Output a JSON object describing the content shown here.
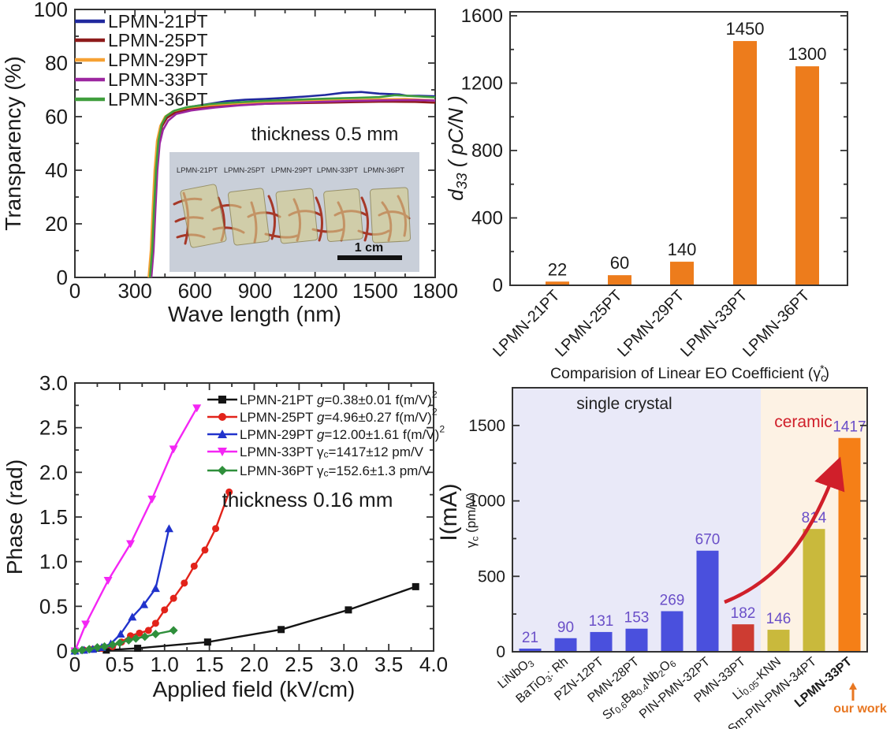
{
  "figure": {
    "background": "#ffffff",
    "frame_color": "#333333"
  },
  "chart_data": [
    {
      "id": "transparency",
      "panel": "top-left",
      "type": "line",
      "title": "",
      "xlabel": "Wave length (nm)",
      "ylabel": "Transparency (%)",
      "xlim": [
        0,
        1800
      ],
      "ylim": [
        0,
        100
      ],
      "xticks": [
        0,
        300,
        600,
        900,
        1200,
        1500,
        1800
      ],
      "yticks": [
        0,
        20,
        40,
        60,
        80,
        100
      ],
      "x_minor_step": 150,
      "y_minor_step": 10,
      "grid": false,
      "legend_position": "top-left",
      "annotation": "thickness ~0.5 mm",
      "series": [
        {
          "name": "LPMN-21PT",
          "legend_label": "LPMN-21PT",
          "color": "#20299e",
          "points": [
            [
              372,
              0
            ],
            [
              383,
              10
            ],
            [
              392,
              25
            ],
            [
              402,
              40
            ],
            [
              414,
              51
            ],
            [
              430,
              57
            ],
            [
              452,
              60
            ],
            [
              490,
              62
            ],
            [
              560,
              63.5
            ],
            [
              650,
              64.5
            ],
            [
              760,
              65.8
            ],
            [
              850,
              66.3
            ],
            [
              950,
              66.6
            ],
            [
              1050,
              67
            ],
            [
              1150,
              67.5
            ],
            [
              1250,
              68.1
            ],
            [
              1340,
              68.9
            ],
            [
              1430,
              69.2
            ],
            [
              1520,
              68.6
            ],
            [
              1620,
              68.3
            ],
            [
              1660,
              67.8
            ],
            [
              1720,
              67.8
            ],
            [
              1800,
              67.6
            ]
          ]
        },
        {
          "name": "LPMN-25PT",
          "legend_label": "LPMN-25PT",
          "color": "#8e1b1b",
          "points": [
            [
              378,
              0
            ],
            [
              389,
              10
            ],
            [
              398,
              25
            ],
            [
              408,
              40
            ],
            [
              420,
              51
            ],
            [
              436,
              56.5
            ],
            [
              460,
              59.5
            ],
            [
              500,
              61.5
            ],
            [
              570,
              62.8
            ],
            [
              680,
              63.8
            ],
            [
              800,
              64.3
            ],
            [
              950,
              64.8
            ],
            [
              1100,
              65
            ],
            [
              1250,
              65.2
            ],
            [
              1400,
              65.4
            ],
            [
              1550,
              65.6
            ],
            [
              1700,
              65.5
            ],
            [
              1800,
              65.2
            ]
          ]
        },
        {
          "name": "LPMN-29PT",
          "legend_label": "LPMN-29PT",
          "color": "#f6a133",
          "points": [
            [
              368,
              0
            ],
            [
              379,
              10
            ],
            [
              388,
              25
            ],
            [
              398,
              40
            ],
            [
              410,
              51
            ],
            [
              426,
              56.5
            ],
            [
              450,
              60
            ],
            [
              490,
              62
            ],
            [
              560,
              63.3
            ],
            [
              680,
              64.3
            ],
            [
              800,
              64.9
            ],
            [
              950,
              65.4
            ],
            [
              1100,
              65.7
            ],
            [
              1250,
              66
            ],
            [
              1400,
              66.2
            ],
            [
              1530,
              66.5
            ],
            [
              1650,
              66.6
            ],
            [
              1800,
              66.1
            ]
          ]
        },
        {
          "name": "LPMN-33PT",
          "legend_label": "LPMN-33PT",
          "color": "#9c26a0",
          "points": [
            [
              382,
              0
            ],
            [
              393,
              10
            ],
            [
              402,
              25
            ],
            [
              412,
              40
            ],
            [
              424,
              50
            ],
            [
              440,
              55
            ],
            [
              466,
              58.5
            ],
            [
              506,
              61
            ],
            [
              580,
              62.3
            ],
            [
              700,
              63.4
            ],
            [
              820,
              64.2
            ],
            [
              950,
              64.8
            ],
            [
              1100,
              65.2
            ],
            [
              1250,
              65.6
            ],
            [
              1400,
              65.9
            ],
            [
              1550,
              66.1
            ],
            [
              1700,
              66.2
            ],
            [
              1800,
              66
            ]
          ]
        },
        {
          "name": "LPMN-36PT",
          "legend_label": "LPMN-36PT",
          "color": "#3f9e3c",
          "points": [
            [
              375,
              0
            ],
            [
              386,
              10
            ],
            [
              395,
              25
            ],
            [
              405,
              40
            ],
            [
              417,
              51
            ],
            [
              433,
              57
            ],
            [
              456,
              60.2
            ],
            [
              496,
              62.2
            ],
            [
              565,
              63.6
            ],
            [
              680,
              64.7
            ],
            [
              800,
              65.3
            ],
            [
              950,
              65.9
            ],
            [
              1100,
              66.3
            ],
            [
              1250,
              66.7
            ],
            [
              1400,
              67
            ],
            [
              1520,
              67.3
            ],
            [
              1600,
              68
            ],
            [
              1680,
              67.7
            ],
            [
              1800,
              67.2
            ]
          ]
        }
      ],
      "inset": {
        "sample_labels": [
          "LPMN-21PT",
          "LPMN-25PT",
          "LPMN-29PT",
          "LPMN-33PT",
          "LPMN-36PT"
        ],
        "scale_label": "1 cm",
        "background": "#c9cfd9",
        "sample_color": "rgba(213,203,138,0.62)",
        "ink_color": "#a5301f"
      }
    },
    {
      "id": "d33",
      "panel": "top-right",
      "type": "bar",
      "title": "",
      "ylabel": "d~33~ ( pC/N )",
      "categories": [
        "LPMN-21PT",
        "LPMN-25PT",
        "LPMN-29PT",
        "LPMN-33PT",
        "LPMN-36PT"
      ],
      "values": [
        22,
        60,
        140,
        1450,
        1300
      ],
      "bar_color": "#ed7c1c",
      "value_label_color": "#1b1b1b",
      "ylim": [
        0,
        1600
      ],
      "yticks": [
        0,
        400,
        800,
        1200,
        1600
      ],
      "y_minor_step": 200,
      "grid": false
    },
    {
      "id": "phase",
      "panel": "bottom-left",
      "type": "line",
      "title": "",
      "xlabel": "Applied field (kV/cm)",
      "ylabel": "Phase (rad)",
      "xlim": [
        0,
        4
      ],
      "ylim": [
        0,
        3
      ],
      "xticks": [
        0,
        0.5,
        1,
        1.5,
        2,
        2.5,
        3,
        3.5,
        4
      ],
      "xtick_labels": [
        "0",
        "0.5",
        "1.0",
        "1.5",
        "2.0",
        "2.5",
        "3.0",
        "3.5",
        "4.0"
      ],
      "yticks": [
        0,
        0.5,
        1,
        1.5,
        2,
        2.5,
        3
      ],
      "ytick_labels": [
        "0",
        "0.5",
        "1.0",
        "1.5",
        "2.0",
        "2.5",
        "3.0"
      ],
      "x_minor_step": 0.25,
      "y_minor_step": 0.25,
      "grid": false,
      "legend_position": "top-right",
      "annotation": "thickness 0.16 mm",
      "series": [
        {
          "name": "LPMN-21PT",
          "legend_label": "LPMN-21PT *g*=0.38±0.01 f(m/V)^2^",
          "color": "#141414",
          "marker": "square",
          "points": [
            [
              0,
              0
            ],
            [
              0.35,
              0.01
            ],
            [
              0.7,
              0.03
            ],
            [
              1.48,
              0.1
            ],
            [
              2.3,
              0.24
            ],
            [
              3.05,
              0.46
            ],
            [
              3.8,
              0.72
            ]
          ]
        },
        {
          "name": "LPMN-25PT",
          "legend_label": "LPMN-25PT *g*=4.96±0.27 f(m/V)^2^",
          "color": "#e2231a",
          "marker": "circle",
          "points": [
            [
              0,
              0
            ],
            [
              0.1,
              0.01
            ],
            [
              0.2,
              0.02
            ],
            [
              0.3,
              0.03
            ],
            [
              0.42,
              0.05
            ],
            [
              0.52,
              0.1
            ],
            [
              0.62,
              0.17
            ],
            [
              0.72,
              0.2
            ],
            [
              0.82,
              0.23
            ],
            [
              0.9,
              0.31
            ],
            [
              1.0,
              0.46
            ],
            [
              1.1,
              0.59
            ],
            [
              1.22,
              0.76
            ],
            [
              1.33,
              0.95
            ],
            [
              1.45,
              1.13
            ],
            [
              1.57,
              1.37
            ],
            [
              1.72,
              1.78
            ]
          ]
        },
        {
          "name": "LPMN-29PT",
          "legend_label": "LPMN-29PT *g*=12.00±1.61 f(m/V)^2^",
          "color": "#2133cc",
          "marker": "triangle-up",
          "points": [
            [
              0,
              0
            ],
            [
              0.1,
              0.01
            ],
            [
              0.2,
              0.02
            ],
            [
              0.3,
              0.04
            ],
            [
              0.4,
              0.08
            ],
            [
              0.51,
              0.19
            ],
            [
              0.64,
              0.38
            ],
            [
              0.77,
              0.52
            ],
            [
              0.9,
              0.7
            ],
            [
              1.05,
              1.37
            ]
          ]
        },
        {
          "name": "LPMN-33PT",
          "legend_label": "LPMN-33PT γ~c~=1417±12 pm/V",
          "color": "#f426f4",
          "marker": "triangle-down",
          "points": [
            [
              0,
              0
            ],
            [
              0.12,
              0.3
            ],
            [
              0.37,
              0.79
            ],
            [
              0.62,
              1.2
            ],
            [
              0.86,
              1.7
            ],
            [
              1.1,
              2.26
            ],
            [
              1.36,
              2.72
            ]
          ]
        },
        {
          "name": "LPMN-36PT",
          "legend_label": "LPMN-36PT γ~c~=152.6±1.3 pm/V",
          "color": "#2f8f3b",
          "marker": "diamond",
          "points": [
            [
              0,
              0
            ],
            [
              0.08,
              0.01
            ],
            [
              0.16,
              0.02
            ],
            [
              0.25,
              0.04
            ],
            [
              0.33,
              0.05
            ],
            [
              0.42,
              0.07
            ],
            [
              0.5,
              0.09
            ],
            [
              0.6,
              0.12
            ],
            [
              0.68,
              0.14
            ],
            [
              0.78,
              0.16
            ],
            [
              0.9,
              0.19
            ],
            [
              1.1,
              0.23
            ]
          ]
        }
      ]
    },
    {
      "id": "eo-comparison",
      "panel": "bottom-right",
      "type": "bar",
      "title": "Comparision of Linear EO Coefficient (γ~c~^*^)",
      "ylabel": "γ~c~ (pm/V)",
      "stray_axis_label": "I(mA)",
      "categories": [
        "LiNbO~3~",
        "BaTiO~3~: Rh",
        "PZN-12PT",
        "PMN-28PT",
        "Sr~0.6~Ba~0.4~Nb~2~O~6~",
        "PIN-PMN-32PT",
        "PMN-33PT",
        "Li~0.05~-KNN",
        "Sm-PIN-PMN-34PT",
        "LPMN-33PT"
      ],
      "values": [
        21,
        90,
        131,
        153,
        269,
        670,
        182,
        146,
        814,
        1417
      ],
      "bar_colors": [
        "#4a50dd",
        "#4a50dd",
        "#4a50dd",
        "#4a50dd",
        "#4a50dd",
        "#4a50dd",
        "#cd3c32",
        "#c9b93c",
        "#c9b93c",
        "#f57f17"
      ],
      "bold_categories": [
        9
      ],
      "value_label_color": "#6a4fc8",
      "ylim": [
        0,
        1750
      ],
      "yticks": [
        0,
        500,
        1000,
        1500
      ],
      "y_minor_step": 250,
      "grid": false,
      "regions": [
        {
          "label": "single crystal",
          "from": 0,
          "to": 7,
          "color": "#e9e9f8",
          "label_color": "#222222"
        },
        {
          "label": "ceramic",
          "from": 7,
          "to": 10,
          "color": "#fdf2e4",
          "label_color": "#d01f2a"
        }
      ],
      "arrow_color": "#d01f2a",
      "our_work": {
        "text": "our work",
        "color": "#e87722"
      }
    }
  ]
}
